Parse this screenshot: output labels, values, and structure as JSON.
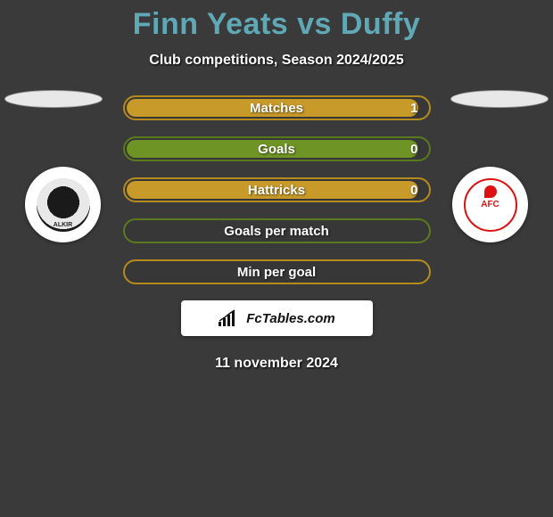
{
  "title": "Finn Yeats vs Duffy",
  "subtitle": "Club competitions, Season 2024/2025",
  "date": "11 november 2024",
  "footer": {
    "brand": "FcTables.com"
  },
  "colors": {
    "title": "#5fa8b5",
    "background": "#3a3a3a",
    "text_white": "#ffffff"
  },
  "ellipses": {
    "left_color": "#e8e8e8",
    "right_color": "#e8e8e8"
  },
  "crests": {
    "left": {
      "name": "falkirk-crest",
      "ring_color": "#e8e8e8",
      "core_color": "#1a1a1a"
    },
    "right": {
      "name": "airdrieonians-crest",
      "primary": "#d11122",
      "bg": "#ffffff",
      "text": "AFC"
    }
  },
  "bars": [
    {
      "label": "Matches",
      "value_text": "1",
      "border_color": "#b58b1e",
      "fill_color": "#c79a2a",
      "fill_pct": 96
    },
    {
      "label": "Goals",
      "value_text": "0",
      "border_color": "#5a7a1e",
      "fill_color": "#6f9426",
      "fill_pct": 96
    },
    {
      "label": "Hattricks",
      "value_text": "0",
      "border_color": "#b58b1e",
      "fill_color": "#c79a2a",
      "fill_pct": 96
    },
    {
      "label": "Goals per match",
      "value_text": "",
      "border_color": "#5a7a1e",
      "fill_color": "#6f9426",
      "fill_pct": 0
    },
    {
      "label": "Min per goal",
      "value_text": "",
      "border_color": "#b58b1e",
      "fill_color": "#c79a2a",
      "fill_pct": 0
    }
  ]
}
